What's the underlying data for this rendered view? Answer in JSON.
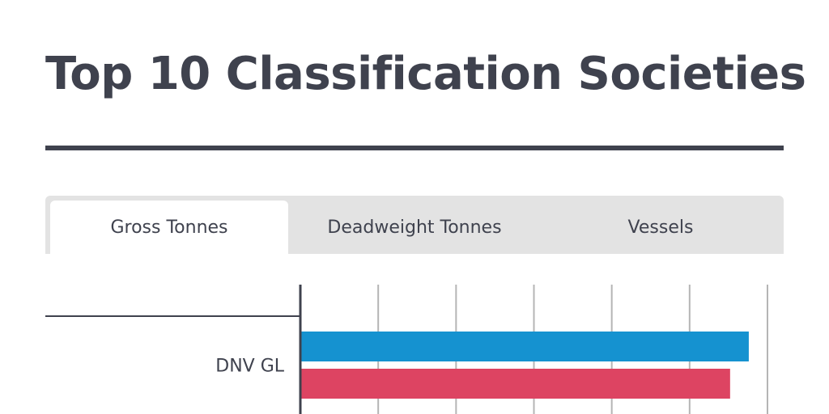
{
  "page": {
    "title": "Top 10 Classification Societies"
  },
  "tabs": [
    {
      "label": "Gross Tonnes",
      "active": true
    },
    {
      "label": "Deadweight Tonnes",
      "active": false
    },
    {
      "label": "Vessels",
      "active": false
    }
  ],
  "colors": {
    "text": "#3f424e",
    "tab_bar": "#e3e3e3",
    "gridline": "#b5b5b5",
    "series_1": "#1592d0",
    "series_2": "#dd4462"
  },
  "chart_data": {
    "type": "bar",
    "orientation": "horizontal",
    "categories": [
      "DNV GL"
    ],
    "series": [
      {
        "values": [
          0.96
        ]
      },
      {
        "values": [
          0.92
        ]
      }
    ],
    "xlim": [
      0,
      1
    ],
    "gridlines": 6,
    "grid": true,
    "title": "Top 10 Classification Societies"
  }
}
